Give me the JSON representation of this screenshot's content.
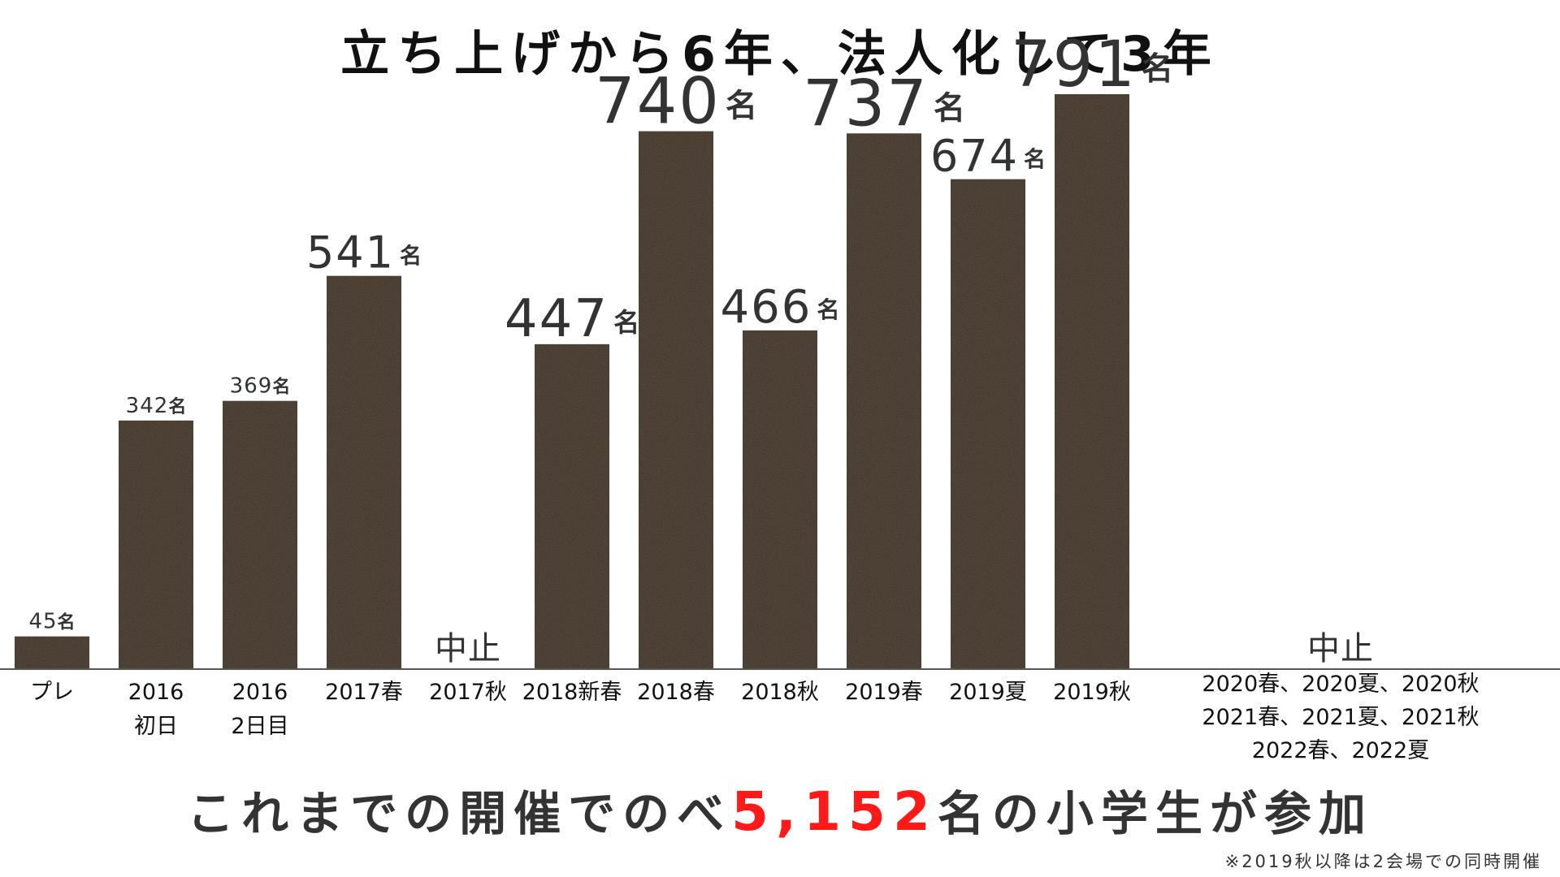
{
  "title": "立ち上げから6年、法人化して3年",
  "summary": {
    "before": "これまでの開催でのべ",
    "highlight": "5,152",
    "after": "名の小学生が参加",
    "highlight_color": "#ff1a1a"
  },
  "note": "※2019秋以降は2会場での同時開催",
  "cancelled_events": [
    "2020春、2020夏、2020秋",
    "2021春、2021夏、2021秋",
    "2022春、2022夏"
  ],
  "colors": {
    "bar": "#3b2d20",
    "text": "#222222"
  },
  "chart_data": {
    "type": "bar",
    "categories": [
      "プレ",
      "2016\n初日",
      "2016\n2日目",
      "2017春",
      "2017秋",
      "2018新春",
      "2018春",
      "2018秋",
      "2019春",
      "2019夏",
      "2019秋",
      ""
    ],
    "values": [
      45,
      342,
      369,
      541,
      null,
      447,
      740,
      466,
      737,
      674,
      791,
      null
    ],
    "value_labels": [
      "45",
      "342",
      "369",
      "541",
      "中止",
      "447",
      "740",
      "466",
      "737",
      "674",
      "791",
      "中止"
    ],
    "unit": "名",
    "ylim": [
      0,
      820
    ],
    "grid": false,
    "title": "",
    "xlabel": "",
    "ylabel": ""
  }
}
